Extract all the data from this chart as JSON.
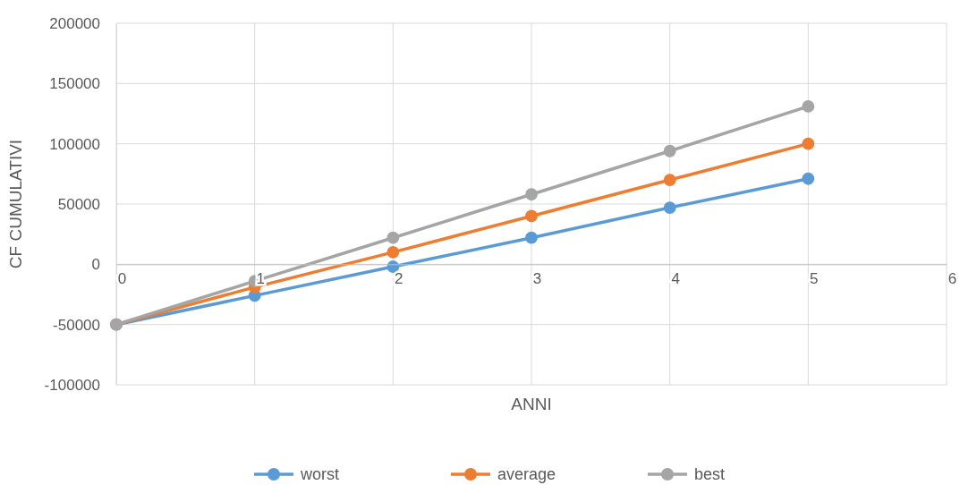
{
  "chart_data": {
    "type": "line",
    "xlabel": "ANNI",
    "ylabel": "CF CUMULATIVI",
    "x": [
      0,
      1,
      2,
      3,
      4,
      5
    ],
    "series": [
      {
        "name": "worst",
        "color": "#5b9bd5",
        "values": [
          -50000,
          -26000,
          -2000,
          22000,
          47000,
          71000
        ]
      },
      {
        "name": "average",
        "color": "#ed7d31",
        "values": [
          -50000,
          -19000,
          10000,
          40000,
          70000,
          100000
        ]
      },
      {
        "name": "best",
        "color": "#a5a5a5",
        "values": [
          -50000,
          -14000,
          22000,
          58000,
          94000,
          131000
        ]
      }
    ],
    "xlim": [
      0,
      6
    ],
    "xticks": [
      0,
      1,
      2,
      3,
      4,
      5,
      6
    ],
    "ylim": [
      -100000,
      200000
    ],
    "yticks": [
      -100000,
      -50000,
      0,
      50000,
      100000,
      150000,
      200000
    ],
    "grid": true,
    "legend": "bottom",
    "marker": "circle",
    "line_style": "solid"
  }
}
